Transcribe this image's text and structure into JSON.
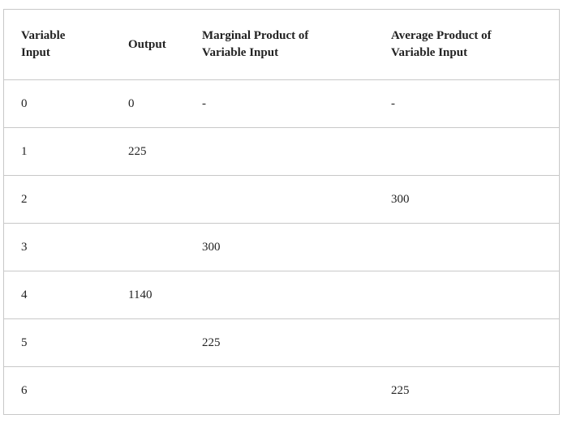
{
  "table": {
    "headers": [
      [
        "Variable",
        "Input"
      ],
      [
        "Output"
      ],
      [
        "Marginal Product of",
        "Variable Input"
      ],
      [
        "Average Product of",
        "Variable Input"
      ]
    ],
    "rows": [
      [
        "0",
        "0",
        "-",
        "-"
      ],
      [
        "1",
        "225",
        "",
        ""
      ],
      [
        "2",
        "",
        "",
        "300"
      ],
      [
        "3",
        "",
        "300",
        ""
      ],
      [
        "4",
        "1140",
        "",
        ""
      ],
      [
        "5",
        "",
        "225",
        ""
      ],
      [
        "6",
        "",
        "",
        "225"
      ]
    ]
  }
}
